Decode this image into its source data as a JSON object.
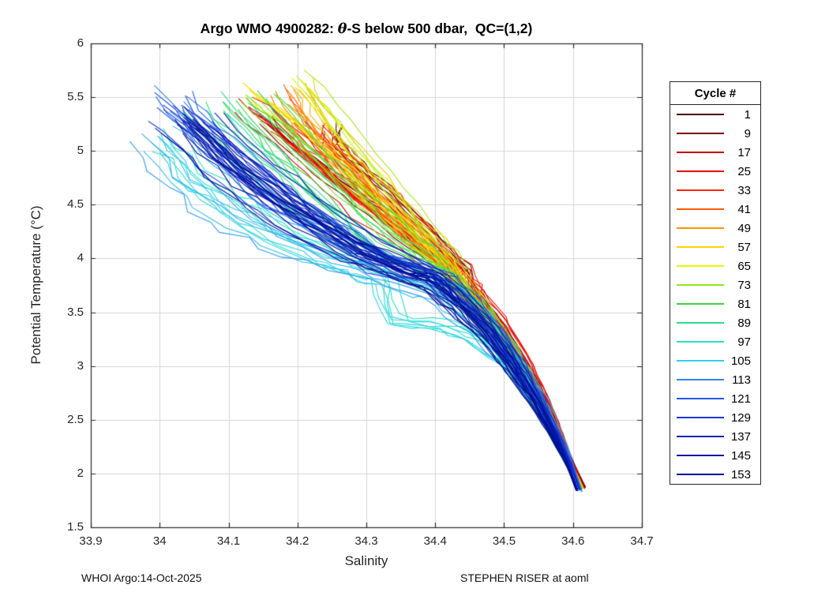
{
  "figure": {
    "title": {
      "prefix": "Argo WMO 4900282: ",
      "theta": "θ",
      "suffix": "-S below 500 dbar,  QC=(1,2)"
    },
    "footer_left": "WHOI Argo:14-Oct-2025",
    "footer_right": "STEPHEN RISER at aoml"
  },
  "axes": {
    "xtick_labels": [
      "33.9",
      "34",
      "34.1",
      "34.2",
      "34.3",
      "34.4",
      "34.5",
      "34.6",
      "34.7"
    ],
    "ytick_labels": [
      "1.5",
      "2",
      "2.5",
      "3",
      "3.5",
      "4",
      "4.5",
      "5",
      "5.5",
      "6"
    ]
  },
  "chart_data": {
    "type": "line",
    "title": "Argo WMO 4900282: θ-S below 500 dbar,  QC=(1,2)",
    "xlabel": "Salinity",
    "ylabel": "Potential Temperature (°C)",
    "xlim": [
      33.9,
      34.7
    ],
    "ylim": [
      1.5,
      6
    ],
    "xticks": [
      33.9,
      34,
      34.1,
      34.2,
      34.3,
      34.4,
      34.5,
      34.6,
      34.7
    ],
    "yticks": [
      1.5,
      2,
      2.5,
      3,
      3.5,
      4,
      4.5,
      5,
      5.5,
      6
    ],
    "grid": true,
    "grid_color": "#d4d4d4",
    "axis_color": "#262626",
    "convergence_point": [
      34.61,
      1.85
    ],
    "legend": {
      "title": "Cycle #",
      "position": "outside-right"
    },
    "render": {
      "copies_per_series": 6,
      "jitter_salinity": 0.03,
      "jitter_temperature": 0.11
    },
    "series": [
      {
        "cycle": 1,
        "color": "#4B0000",
        "jitter_scale": 0.6,
        "points": [
          [
            34.25,
            5.22
          ],
          [
            34.248,
            5.08
          ],
          [
            34.27,
            4.93
          ],
          [
            34.31,
            4.7
          ],
          [
            34.35,
            4.47
          ],
          [
            34.4,
            4.15
          ],
          [
            34.44,
            3.9
          ],
          [
            34.45,
            3.72
          ],
          [
            34.484,
            3.45
          ],
          [
            34.519,
            3.12
          ],
          [
            34.549,
            2.8
          ],
          [
            34.576,
            2.46
          ],
          [
            34.596,
            2.16
          ],
          [
            34.618,
            1.87
          ]
        ]
      },
      {
        "cycle": 9,
        "color": "#7D0000",
        "jitter_scale": 0.7,
        "points": [
          [
            34.16,
            5.32
          ],
          [
            34.2,
            5.05
          ],
          [
            34.26,
            4.76
          ],
          [
            34.32,
            4.46
          ],
          [
            34.375,
            4.16
          ],
          [
            34.42,
            3.93
          ],
          [
            34.447,
            3.72
          ],
          [
            34.482,
            3.45
          ],
          [
            34.517,
            3.12
          ],
          [
            34.547,
            2.8
          ],
          [
            34.574,
            2.46
          ],
          [
            34.594,
            2.16
          ],
          [
            34.616,
            1.87
          ]
        ]
      },
      {
        "cycle": 17,
        "color": "#C00000",
        "jitter_scale": 1.0,
        "points": [
          [
            34.13,
            5.42
          ],
          [
            34.19,
            5.1
          ],
          [
            34.26,
            4.7
          ],
          [
            34.33,
            4.33
          ],
          [
            34.39,
            4.03
          ],
          [
            34.43,
            3.85
          ],
          [
            34.465,
            3.6
          ],
          [
            34.5,
            3.32
          ],
          [
            34.53,
            3.0
          ],
          [
            34.558,
            2.68
          ],
          [
            34.582,
            2.36
          ],
          [
            34.6,
            2.1
          ],
          [
            34.617,
            1.86
          ]
        ]
      },
      {
        "cycle": 25,
        "color": "#E60000",
        "jitter_scale": 1.0,
        "points": [
          [
            34.21,
            5.28
          ],
          [
            34.26,
            4.96
          ],
          [
            34.32,
            4.6
          ],
          [
            34.385,
            4.2
          ],
          [
            34.43,
            3.95
          ],
          [
            34.45,
            3.74
          ],
          [
            34.484,
            3.47
          ],
          [
            34.518,
            3.14
          ],
          [
            34.548,
            2.82
          ],
          [
            34.574,
            2.48
          ],
          [
            34.594,
            2.17
          ],
          [
            34.615,
            1.87
          ]
        ]
      },
      {
        "cycle": 33,
        "color": "#FF2400",
        "jitter_scale": 1.0,
        "points": [
          [
            34.17,
            5.18
          ],
          [
            34.23,
            4.86
          ],
          [
            34.3,
            4.5
          ],
          [
            34.37,
            4.13
          ],
          [
            34.42,
            3.9
          ],
          [
            34.448,
            3.7
          ],
          [
            34.482,
            3.44
          ],
          [
            34.516,
            3.11
          ],
          [
            34.546,
            2.79
          ],
          [
            34.572,
            2.45
          ],
          [
            34.592,
            2.15
          ],
          [
            34.614,
            1.86
          ]
        ]
      },
      {
        "cycle": 41,
        "color": "#FF5B00",
        "jitter_scale": 1.0,
        "points": [
          [
            34.19,
            5.5
          ],
          [
            34.23,
            5.16
          ],
          [
            34.29,
            4.76
          ],
          [
            34.355,
            4.33
          ],
          [
            34.41,
            4.0
          ],
          [
            34.443,
            3.73
          ],
          [
            34.478,
            3.46
          ],
          [
            34.513,
            3.13
          ],
          [
            34.543,
            2.81
          ],
          [
            34.57,
            2.47
          ],
          [
            34.591,
            2.16
          ],
          [
            34.613,
            1.86
          ]
        ]
      },
      {
        "cycle": 49,
        "color": "#FF9300",
        "jitter_scale": 0.9,
        "points": [
          [
            34.215,
            5.62
          ],
          [
            34.24,
            5.3
          ],
          [
            34.3,
            4.83
          ],
          [
            34.37,
            4.36
          ],
          [
            34.425,
            4.0
          ],
          [
            34.447,
            3.74
          ],
          [
            34.48,
            3.47
          ],
          [
            34.514,
            3.14
          ],
          [
            34.544,
            2.82
          ],
          [
            34.571,
            2.48
          ],
          [
            34.592,
            2.17
          ],
          [
            34.614,
            1.87
          ]
        ]
      },
      {
        "cycle": 57,
        "color": "#FFD300",
        "jitter_scale": 0.9,
        "points": [
          [
            34.14,
            5.52
          ],
          [
            34.2,
            5.26
          ],
          [
            34.27,
            4.83
          ],
          [
            34.34,
            4.4
          ],
          [
            34.4,
            4.03
          ],
          [
            34.44,
            3.73
          ],
          [
            34.476,
            3.46
          ],
          [
            34.51,
            3.13
          ],
          [
            34.541,
            2.81
          ],
          [
            34.568,
            2.47
          ],
          [
            34.59,
            2.16
          ],
          [
            34.612,
            1.86
          ]
        ]
      },
      {
        "cycle": 65,
        "color": "#E9F400",
        "jitter_scale": 0.9,
        "points": [
          [
            34.21,
            5.65
          ],
          [
            34.27,
            5.2
          ],
          [
            34.33,
            4.7
          ],
          [
            34.39,
            4.26
          ],
          [
            34.43,
            3.98
          ],
          [
            34.45,
            3.73
          ],
          [
            34.483,
            3.46
          ],
          [
            34.516,
            3.13
          ],
          [
            34.546,
            2.81
          ],
          [
            34.572,
            2.47
          ],
          [
            34.593,
            2.16
          ],
          [
            34.615,
            1.86
          ]
        ]
      },
      {
        "cycle": 73,
        "color": "#8FE61B",
        "jitter_scale": 1.0,
        "points": [
          [
            34.15,
            5.45
          ],
          [
            34.21,
            5.06
          ],
          [
            34.28,
            4.6
          ],
          [
            34.35,
            4.2
          ],
          [
            34.4,
            3.96
          ],
          [
            34.42,
            3.78
          ],
          [
            34.46,
            3.52
          ],
          [
            34.5,
            3.2
          ],
          [
            34.53,
            2.9
          ],
          [
            34.56,
            2.56
          ],
          [
            34.585,
            2.24
          ],
          [
            34.61,
            1.86
          ]
        ]
      },
      {
        "cycle": 81,
        "color": "#3FD43F",
        "jitter_scale": 1.1,
        "points": [
          [
            34.11,
            5.48
          ],
          [
            34.17,
            5.06
          ],
          [
            34.25,
            4.56
          ],
          [
            34.32,
            4.16
          ],
          [
            34.38,
            3.93
          ],
          [
            34.418,
            3.77
          ],
          [
            34.458,
            3.51
          ],
          [
            34.498,
            3.19
          ],
          [
            34.528,
            2.89
          ],
          [
            34.558,
            2.55
          ],
          [
            34.583,
            2.23
          ],
          [
            34.608,
            1.86
          ]
        ]
      },
      {
        "cycle": 89,
        "color": "#2BDE86",
        "jitter_scale": 1.3,
        "points": [
          [
            34.06,
            5.45
          ],
          [
            34.13,
            5.0
          ],
          [
            34.21,
            4.53
          ],
          [
            34.29,
            4.13
          ],
          [
            34.36,
            3.9
          ],
          [
            34.416,
            3.76
          ],
          [
            34.456,
            3.5
          ],
          [
            34.496,
            3.18
          ],
          [
            34.526,
            2.88
          ],
          [
            34.556,
            2.54
          ],
          [
            34.581,
            2.22
          ],
          [
            34.607,
            1.85
          ]
        ]
      },
      {
        "cycle": 97,
        "color": "#2BE2C4",
        "jitter_scale": 1.6,
        "points": [
          [
            34.01,
            5.18
          ],
          [
            34.06,
            4.82
          ],
          [
            34.12,
            4.52
          ],
          [
            34.2,
            4.22
          ],
          [
            34.28,
            4.0
          ],
          [
            34.33,
            3.88
          ],
          [
            34.345,
            3.47
          ],
          [
            34.42,
            3.42
          ],
          [
            34.47,
            3.25
          ],
          [
            34.52,
            2.98
          ],
          [
            34.553,
            2.66
          ],
          [
            34.578,
            2.36
          ],
          [
            34.598,
            2.06
          ],
          [
            34.611,
            1.84
          ]
        ]
      },
      {
        "cycle": 105,
        "color": "#30CFF2",
        "jitter_scale": 1.5,
        "points": [
          [
            34.0,
            5.12
          ],
          [
            34.05,
            4.72
          ],
          [
            34.11,
            4.42
          ],
          [
            34.19,
            4.15
          ],
          [
            34.28,
            3.95
          ],
          [
            34.36,
            3.78
          ],
          [
            34.41,
            3.68
          ],
          [
            34.46,
            3.42
          ],
          [
            34.5,
            3.15
          ],
          [
            34.535,
            2.86
          ],
          [
            34.565,
            2.56
          ],
          [
            34.588,
            2.26
          ],
          [
            34.605,
            1.98
          ],
          [
            34.613,
            1.83
          ]
        ]
      },
      {
        "cycle": 113,
        "color": "#2F86EE",
        "jitter_scale": 1.2,
        "points": [
          [
            34.03,
            5.48
          ],
          [
            34.09,
            5.05
          ],
          [
            34.17,
            4.58
          ],
          [
            34.25,
            4.25
          ],
          [
            34.32,
            4.0
          ],
          [
            34.403,
            3.82
          ],
          [
            34.443,
            3.6
          ],
          [
            34.483,
            3.32
          ],
          [
            34.518,
            3.02
          ],
          [
            34.551,
            2.7
          ],
          [
            34.578,
            2.38
          ],
          [
            34.599,
            2.1
          ],
          [
            34.612,
            1.85
          ]
        ]
      },
      {
        "cycle": 121,
        "color": "#2257E8",
        "jitter_scale": 1.2,
        "points": [
          [
            34.0,
            5.42
          ],
          [
            34.07,
            4.98
          ],
          [
            34.15,
            4.55
          ],
          [
            34.24,
            4.22
          ],
          [
            34.31,
            3.98
          ],
          [
            34.4,
            3.8
          ],
          [
            34.44,
            3.58
          ],
          [
            34.48,
            3.3
          ],
          [
            34.515,
            3.0
          ],
          [
            34.548,
            2.68
          ],
          [
            34.575,
            2.36
          ],
          [
            34.596,
            2.08
          ],
          [
            34.609,
            1.85
          ]
        ]
      },
      {
        "cycle": 129,
        "color": "#1736D2",
        "jitter_scale": 1.1,
        "points": [
          [
            34.04,
            5.32
          ],
          [
            34.11,
            4.88
          ],
          [
            34.2,
            4.45
          ],
          [
            34.28,
            4.12
          ],
          [
            34.34,
            3.94
          ],
          [
            34.401,
            3.81
          ],
          [
            34.441,
            3.59
          ],
          [
            34.481,
            3.31
          ],
          [
            34.516,
            3.01
          ],
          [
            34.549,
            2.69
          ],
          [
            34.576,
            2.37
          ],
          [
            34.597,
            2.09
          ],
          [
            34.61,
            1.85
          ]
        ]
      },
      {
        "cycle": 137,
        "color": "#0D23BC",
        "jitter_scale": 1.0,
        "points": [
          [
            34.06,
            5.28
          ],
          [
            34.14,
            4.82
          ],
          [
            34.23,
            4.38
          ],
          [
            34.31,
            4.06
          ],
          [
            34.398,
            3.8
          ],
          [
            34.438,
            3.58
          ],
          [
            34.478,
            3.3
          ],
          [
            34.513,
            3.0
          ],
          [
            34.546,
            2.68
          ],
          [
            34.573,
            2.36
          ],
          [
            34.594,
            2.08
          ],
          [
            34.607,
            1.84
          ]
        ]
      },
      {
        "cycle": 145,
        "color": "#0616A8",
        "jitter_scale": 1.1,
        "points": [
          [
            34.02,
            5.28
          ],
          [
            34.1,
            4.8
          ],
          [
            34.19,
            4.4
          ],
          [
            34.28,
            4.07
          ],
          [
            34.34,
            3.91
          ],
          [
            34.397,
            3.79
          ],
          [
            34.437,
            3.57
          ],
          [
            34.477,
            3.29
          ],
          [
            34.512,
            2.99
          ],
          [
            34.545,
            2.67
          ],
          [
            34.572,
            2.35
          ],
          [
            34.593,
            2.07
          ],
          [
            34.606,
            1.84
          ]
        ]
      },
      {
        "cycle": 153,
        "color": "#010F93",
        "jitter_scale": 1.0,
        "points": [
          [
            34.05,
            5.22
          ],
          [
            34.13,
            4.75
          ],
          [
            34.22,
            4.35
          ],
          [
            34.3,
            4.03
          ],
          [
            34.35,
            3.88
          ],
          [
            34.396,
            3.78
          ],
          [
            34.436,
            3.56
          ],
          [
            34.476,
            3.28
          ],
          [
            34.511,
            2.98
          ],
          [
            34.544,
            2.66
          ],
          [
            34.571,
            2.34
          ],
          [
            34.592,
            2.06
          ],
          [
            34.605,
            1.84
          ]
        ]
      }
    ]
  }
}
